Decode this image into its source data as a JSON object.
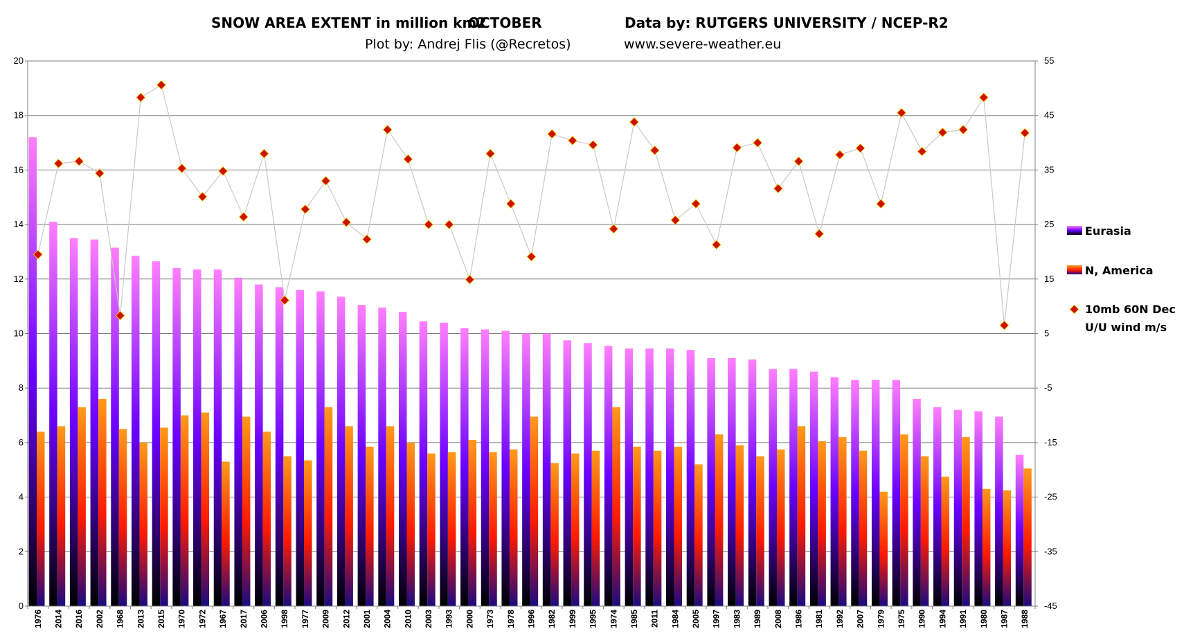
{
  "header": {
    "title_left": "SNOW AREA EXTENT in million km2",
    "title_month": "OCTOBER",
    "title_right": "Data by: RUTGERS UNIVERSITY / NCEP-R2",
    "plot_by": "Plot by: Andrej Flis (@Recretos)",
    "website": "www.severe-weather.eu"
  },
  "legend": {
    "eurasia": "Eurasia",
    "namerica": "N, America",
    "wind_line1": "10mb  60N Dec",
    "wind_line2": "U/U wind m/s"
  },
  "colors": {
    "eurasia_top": "#ff7fff",
    "eurasia_mid": "#6a00ff",
    "eurasia_bottom": "#000000",
    "namerica_top": "#ff9a1a",
    "namerica_mid": "#ff1a00",
    "namerica_bottom": "#1a0a80",
    "marker_fill": "#cc1100",
    "marker_stroke": "#ffd700",
    "wind_line": "#c8c8c8",
    "gridline": "#7f7f7f"
  },
  "chart_data": {
    "type": "bar",
    "categories": [
      "1976",
      "2014",
      "2016",
      "2002",
      "1968",
      "2013",
      "2015",
      "1970",
      "1972",
      "1967",
      "2017",
      "2006",
      "1998",
      "1977",
      "2009",
      "2012",
      "2001",
      "2004",
      "2010",
      "2003",
      "1993",
      "2000",
      "1973",
      "1978",
      "1996",
      "1982",
      "1999",
      "1995",
      "1974",
      "1985",
      "2011",
      "1984",
      "2005",
      "1997",
      "1983",
      "1989",
      "2008",
      "1986",
      "1981",
      "1992",
      "2007",
      "1979",
      "1975",
      "1990",
      "1994",
      "1991",
      "1980",
      "1987",
      "1988"
    ],
    "series": [
      {
        "name": "Eurasia",
        "axis": "left",
        "values": [
          17.2,
          14.1,
          13.5,
          13.45,
          13.15,
          12.85,
          12.65,
          12.4,
          12.35,
          12.35,
          12.05,
          11.8,
          11.7,
          11.6,
          11.55,
          11.35,
          11.05,
          10.95,
          10.8,
          10.45,
          10.4,
          10.2,
          10.15,
          10.1,
          10.0,
          10.0,
          9.75,
          9.65,
          9.55,
          9.45,
          9.45,
          9.45,
          9.4,
          9.1,
          9.1,
          9.05,
          8.7,
          8.7,
          8.6,
          8.4,
          8.3,
          8.3,
          8.3,
          7.6,
          7.3,
          7.2,
          7.15,
          6.95,
          5.55
        ]
      },
      {
        "name": "N, America",
        "axis": "left",
        "values": [
          6.4,
          6.6,
          7.3,
          7.6,
          6.5,
          6.0,
          6.55,
          7.0,
          7.1,
          5.3,
          6.95,
          6.4,
          5.5,
          5.35,
          7.3,
          6.6,
          5.85,
          6.6,
          6.0,
          5.6,
          5.65,
          6.1,
          5.65,
          5.75,
          6.95,
          5.25,
          5.6,
          5.7,
          7.3,
          5.85,
          5.7,
          5.85,
          5.2,
          6.3,
          5.9,
          5.5,
          5.75,
          6.6,
          6.05,
          6.2,
          5.7,
          4.2,
          6.3,
          5.5,
          4.75,
          6.2,
          4.3,
          4.25,
          5.05
        ]
      },
      {
        "name": "10mb  60N Dec U/U wind m/s",
        "type": "line",
        "axis": "right",
        "values": [
          19.5,
          36.2,
          36.6,
          34.4,
          8.3,
          48.3,
          50.6,
          35.3,
          30.1,
          34.8,
          26.4,
          38.0,
          11.1,
          27.8,
          33.0,
          25.4,
          22.3,
          42.4,
          37.0,
          25.0,
          25.0,
          14.9,
          38.0,
          28.8,
          19.1,
          41.6,
          40.4,
          39.6,
          24.2,
          43.8,
          38.6,
          25.8,
          28.8,
          21.3,
          39.1,
          40.0,
          31.6,
          36.6,
          23.3,
          37.8,
          39.0,
          28.8,
          45.5,
          38.4,
          41.9,
          42.4,
          48.3,
          6.5,
          41.8
        ]
      }
    ],
    "y_left": {
      "min": 0,
      "max": 20,
      "ticks": [
        0,
        2,
        4,
        6,
        8,
        10,
        12,
        14,
        16,
        18,
        20
      ]
    },
    "y_right": {
      "min": -45,
      "max": 55,
      "ticks": [
        -45,
        -35,
        -25,
        -15,
        -5,
        5,
        15,
        25,
        35,
        45,
        55
      ]
    },
    "grid": true,
    "legend_position": "right"
  }
}
